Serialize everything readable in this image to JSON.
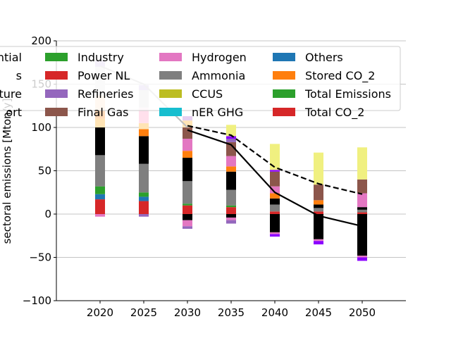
{
  "chart_data": {
    "type": "bar",
    "stacked": true,
    "ylabel": "sectoral emissions [Mton/y]",
    "ylim": [
      -100,
      200
    ],
    "yticks": [
      -100,
      -50,
      0,
      50,
      100,
      150,
      200
    ],
    "categories": [
      "2020",
      "2025",
      "2030",
      "2035",
      "2040",
      "2045",
      "2050"
    ],
    "grid": "horizontal",
    "legend_placement": "upper-right",
    "legend_cut_labels": [
      "ntial",
      "s",
      "ture",
      "ort"
    ],
    "legend": [
      {
        "name": "Industry",
        "color": "#2ca02c"
      },
      {
        "name": "Power NL",
        "color": "#d62728"
      },
      {
        "name": "Refineries",
        "color": "#9467bd"
      },
      {
        "name": "Final Gas",
        "color": "#8c564b"
      },
      {
        "name": "Hydrogen",
        "color": "#e377c2"
      },
      {
        "name": "Ammonia",
        "color": "#7f7f7f"
      },
      {
        "name": "CCUS",
        "color": "#bcbd22"
      },
      {
        "name": "nER GHG",
        "color": "#17becf"
      },
      {
        "name": "Others",
        "color": "#1f77b4"
      },
      {
        "name": "Stored CO_2",
        "color": "#ff7f0e"
      },
      {
        "name": "Total Emissions",
        "color": "#2ca02c"
      },
      {
        "name": "Total CO_2",
        "color": "#d62728"
      }
    ],
    "stack_segments": [
      [
        {
          "from": -3,
          "to": 0,
          "color": "#e377c2"
        },
        {
          "from": 0,
          "to": 17,
          "color": "#d62728"
        },
        {
          "from": 17,
          "to": 23,
          "color": "#1f77b4"
        },
        {
          "from": 23,
          "to": 32,
          "color": "#2ca02c"
        },
        {
          "from": 32,
          "to": 68,
          "color": "#7f7f7f"
        },
        {
          "from": 68,
          "to": 100,
          "color": "#000000"
        },
        {
          "from": 100,
          "to": 110,
          "color": "#ffe4b5"
        },
        {
          "from": 110,
          "to": 137,
          "color": "#ffdab9"
        },
        {
          "from": 137,
          "to": 170,
          "color": "#e6e6e6"
        },
        {
          "from": 170,
          "to": 177,
          "color": "#c9b3e6"
        }
      ],
      [
        {
          "from": -3,
          "to": 0,
          "color": "#9467bd"
        },
        {
          "from": 0,
          "to": 15,
          "color": "#d62728"
        },
        {
          "from": 15,
          "to": 20,
          "color": "#1f77b4"
        },
        {
          "from": 20,
          "to": 25,
          "color": "#2ca02c"
        },
        {
          "from": 25,
          "to": 58,
          "color": "#7f7f7f"
        },
        {
          "from": 58,
          "to": 90,
          "color": "#000000"
        },
        {
          "from": 90,
          "to": 98,
          "color": "#ff7f0e"
        },
        {
          "from": 98,
          "to": 105,
          "color": "#ffe4b5"
        },
        {
          "from": 105,
          "to": 123,
          "color": "#ffe0ec"
        },
        {
          "from": 123,
          "to": 143,
          "color": "#d9d9d9"
        },
        {
          "from": 143,
          "to": 149,
          "color": "#c9b3e6"
        }
      ],
      [
        {
          "from": -17,
          "to": -14,
          "color": "#9467bd"
        },
        {
          "from": -14,
          "to": -7,
          "color": "#e377c2"
        },
        {
          "from": -7,
          "to": 0,
          "color": "#000000"
        },
        {
          "from": 0,
          "to": 10,
          "color": "#d62728"
        },
        {
          "from": 10,
          "to": 12,
          "color": "#2ca02c"
        },
        {
          "from": 12,
          "to": 38,
          "color": "#7f7f7f"
        },
        {
          "from": 38,
          "to": 65,
          "color": "#000000"
        },
        {
          "from": 65,
          "to": 73,
          "color": "#ff7f0e"
        },
        {
          "from": 73,
          "to": 87,
          "color": "#e377c2"
        },
        {
          "from": 87,
          "to": 100,
          "color": "#8c564b"
        },
        {
          "from": 100,
          "to": 108,
          "color": "#ffe4b5"
        },
        {
          "from": 108,
          "to": 113,
          "color": "#e6cff0"
        }
      ],
      [
        {
          "from": -11,
          "to": -7,
          "color": "#9467bd"
        },
        {
          "from": -7,
          "to": -4,
          "color": "#e377c2"
        },
        {
          "from": -4,
          "to": 0,
          "color": "#000000"
        },
        {
          "from": 0,
          "to": 8,
          "color": "#d62728"
        },
        {
          "from": 8,
          "to": 10,
          "color": "#2ca02c"
        },
        {
          "from": 10,
          "to": 28,
          "color": "#7f7f7f"
        },
        {
          "from": 28,
          "to": 49,
          "color": "#000000"
        },
        {
          "from": 49,
          "to": 55,
          "color": "#ff7f0e"
        },
        {
          "from": 55,
          "to": 67,
          "color": "#e377c2"
        },
        {
          "from": 67,
          "to": 83,
          "color": "#8c564b"
        },
        {
          "from": 83,
          "to": 87,
          "color": "#9467bd"
        },
        {
          "from": 87,
          "to": 90,
          "color": "#8c00ff"
        },
        {
          "from": 90,
          "to": 103,
          "color": "#f0f080"
        }
      ],
      [
        {
          "from": -26,
          "to": -23,
          "color": "#8c00ff"
        },
        {
          "from": -23,
          "to": -21,
          "color": "#e377c2"
        },
        {
          "from": -21,
          "to": 0,
          "color": "#000000"
        },
        {
          "from": 0,
          "to": 3,
          "color": "#d62728"
        },
        {
          "from": 3,
          "to": 11,
          "color": "#7f7f7f"
        },
        {
          "from": 11,
          "to": 18,
          "color": "#000000"
        },
        {
          "from": 18,
          "to": 24,
          "color": "#ff7f0e"
        },
        {
          "from": 24,
          "to": 32,
          "color": "#e377c2"
        },
        {
          "from": 32,
          "to": 49,
          "color": "#8c564b"
        },
        {
          "from": 49,
          "to": 51,
          "color": "#8c00ff"
        },
        {
          "from": 51,
          "to": 81,
          "color": "#f0f080"
        }
      ],
      [
        {
          "from": -35,
          "to": -31,
          "color": "#8c00ff"
        },
        {
          "from": -31,
          "to": -29,
          "color": "#e377c2"
        },
        {
          "from": -29,
          "to": 0,
          "color": "#000000"
        },
        {
          "from": 0,
          "to": 3,
          "color": "#d62728"
        },
        {
          "from": 3,
          "to": 7,
          "color": "#7f7f7f"
        },
        {
          "from": 7,
          "to": 11,
          "color": "#000000"
        },
        {
          "from": 11,
          "to": 16,
          "color": "#ff7f0e"
        },
        {
          "from": 16,
          "to": 34,
          "color": "#8c564b"
        },
        {
          "from": 34,
          "to": 71,
          "color": "#f0f080"
        }
      ],
      [
        {
          "from": -54,
          "to": -50,
          "color": "#8c00ff"
        },
        {
          "from": -50,
          "to": -48,
          "color": "#e377c2"
        },
        {
          "from": -48,
          "to": 0,
          "color": "#000000"
        },
        {
          "from": 0,
          "to": 2,
          "color": "#d62728"
        },
        {
          "from": 2,
          "to": 5,
          "color": "#7f7f7f"
        },
        {
          "from": 5,
          "to": 8,
          "color": "#000000"
        },
        {
          "from": 8,
          "to": 24,
          "color": "#e377c2"
        },
        {
          "from": 24,
          "to": 40,
          "color": "#8c564b"
        },
        {
          "from": 40,
          "to": 77,
          "color": "#f0f080"
        }
      ]
    ],
    "lines": [
      {
        "style": "solid",
        "color": "#000000",
        "values": [
          null,
          null,
          97,
          80,
          25,
          -2,
          -14
        ]
      },
      {
        "style": "dashed",
        "color": "#000000",
        "values": [
          null,
          null,
          102,
          91,
          54,
          35,
          23
        ]
      },
      {
        "style": "solid",
        "color": "#c0c0c0",
        "values": [
          171,
          150,
          100,
          null,
          null,
          null,
          null
        ]
      }
    ]
  }
}
